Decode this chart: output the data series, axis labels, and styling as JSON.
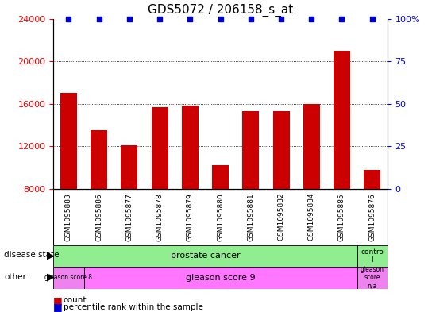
{
  "title": "GDS5072 / 206158_s_at",
  "samples": [
    "GSM1095883",
    "GSM1095886",
    "GSM1095877",
    "GSM1095878",
    "GSM1095879",
    "GSM1095880",
    "GSM1095881",
    "GSM1095882",
    "GSM1095884",
    "GSM1095885",
    "GSM1095876"
  ],
  "counts": [
    17000,
    13500,
    12100,
    15700,
    15800,
    10200,
    15300,
    15300,
    16000,
    21000,
    9800
  ],
  "percentiles": [
    99,
    99,
    99,
    99,
    99,
    99,
    99,
    99,
    99,
    99,
    99
  ],
  "ylim_left": [
    8000,
    24000
  ],
  "ylim_right": [
    0,
    100
  ],
  "yticks_left": [
    8000,
    12000,
    16000,
    20000,
    24000
  ],
  "yticks_right": [
    0,
    25,
    50,
    75,
    100
  ],
  "bar_color": "#cc0000",
  "percentile_color": "#0000cc",
  "bg_color": "#d0d0d0",
  "disease_green": "#90EE90",
  "gleason8_color": "#EE82EE",
  "gleason9_color": "#FF77FF",
  "gleasonNA_color": "#EE82EE",
  "tick_fontsize": 8,
  "title_fontsize": 11,
  "sample_fontsize": 6.5,
  "label_fontsize": 8,
  "bar_width": 0.55
}
